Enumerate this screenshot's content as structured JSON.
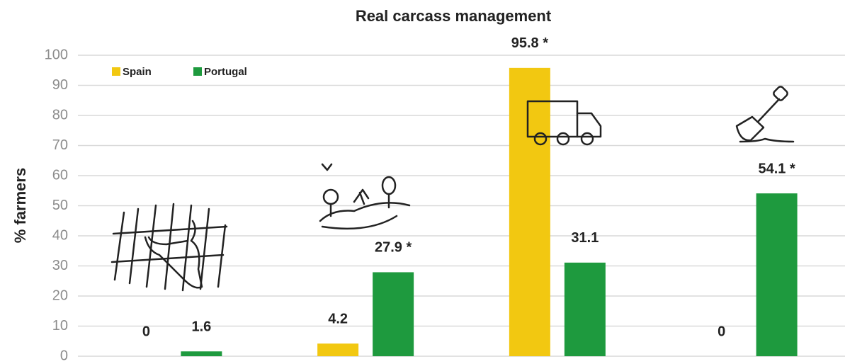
{
  "chart_data": {
    "type": "bar",
    "title": "Real carcass management",
    "y_label": "% farmers",
    "categories": [
      null,
      null,
      null,
      null
    ],
    "series": [
      {
        "name": "Spain",
        "color": "#f2c811",
        "values": [
          0,
          4.2,
          95.8,
          0
        ],
        "value_labels": [
          "0",
          "4.2",
          "95.8 *",
          "0"
        ]
      },
      {
        "name": "Portugal",
        "color": "#1e9a3e",
        "values": [
          1.6,
          27.9,
          31.1,
          54.1
        ],
        "value_labels": [
          "1.6",
          "27.9 *",
          "31.1",
          "54.1 *"
        ]
      }
    ],
    "ylim": [
      0,
      100
    ],
    "yticks": [
      0,
      10,
      20,
      30,
      40,
      50,
      60,
      70,
      80,
      90,
      100
    ],
    "grid": true,
    "legend": "top-left"
  }
}
